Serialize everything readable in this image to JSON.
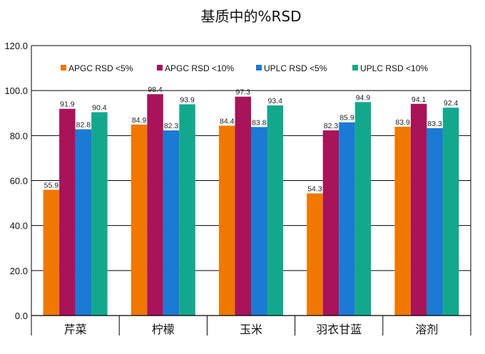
{
  "chart_data": {
    "type": "bar",
    "title": "基质中的%RSD",
    "xlabel": "",
    "ylabel": "",
    "categories": [
      "芹菜",
      "柠檬",
      "玉米",
      "羽衣甘蓝",
      "溶剂"
    ],
    "series": [
      {
        "name": "APGC RSD <5%",
        "color": "#f07800",
        "values": [
          55.9,
          84.9,
          84.4,
          54.3,
          83.9
        ]
      },
      {
        "name": "APGC RSD <10%",
        "color": "#a8135a",
        "values": [
          91.9,
          98.4,
          97.3,
          82.3,
          94.1
        ]
      },
      {
        "name": "UPLC RSD <5%",
        "color": "#1a7ad4",
        "values": [
          82.8,
          82.3,
          83.8,
          85.9,
          83.3
        ]
      },
      {
        "name": "UPLC RSD <10%",
        "color": "#13a88e",
        "values": [
          90.4,
          93.9,
          93.4,
          94.9,
          92.4
        ]
      }
    ],
    "ylim": [
      0,
      120
    ],
    "yticks": [
      "0.0",
      "20.0",
      "40.0",
      "60.0",
      "80.0",
      "100.0",
      "120.0"
    ],
    "grid": true,
    "legend_position": "top"
  }
}
